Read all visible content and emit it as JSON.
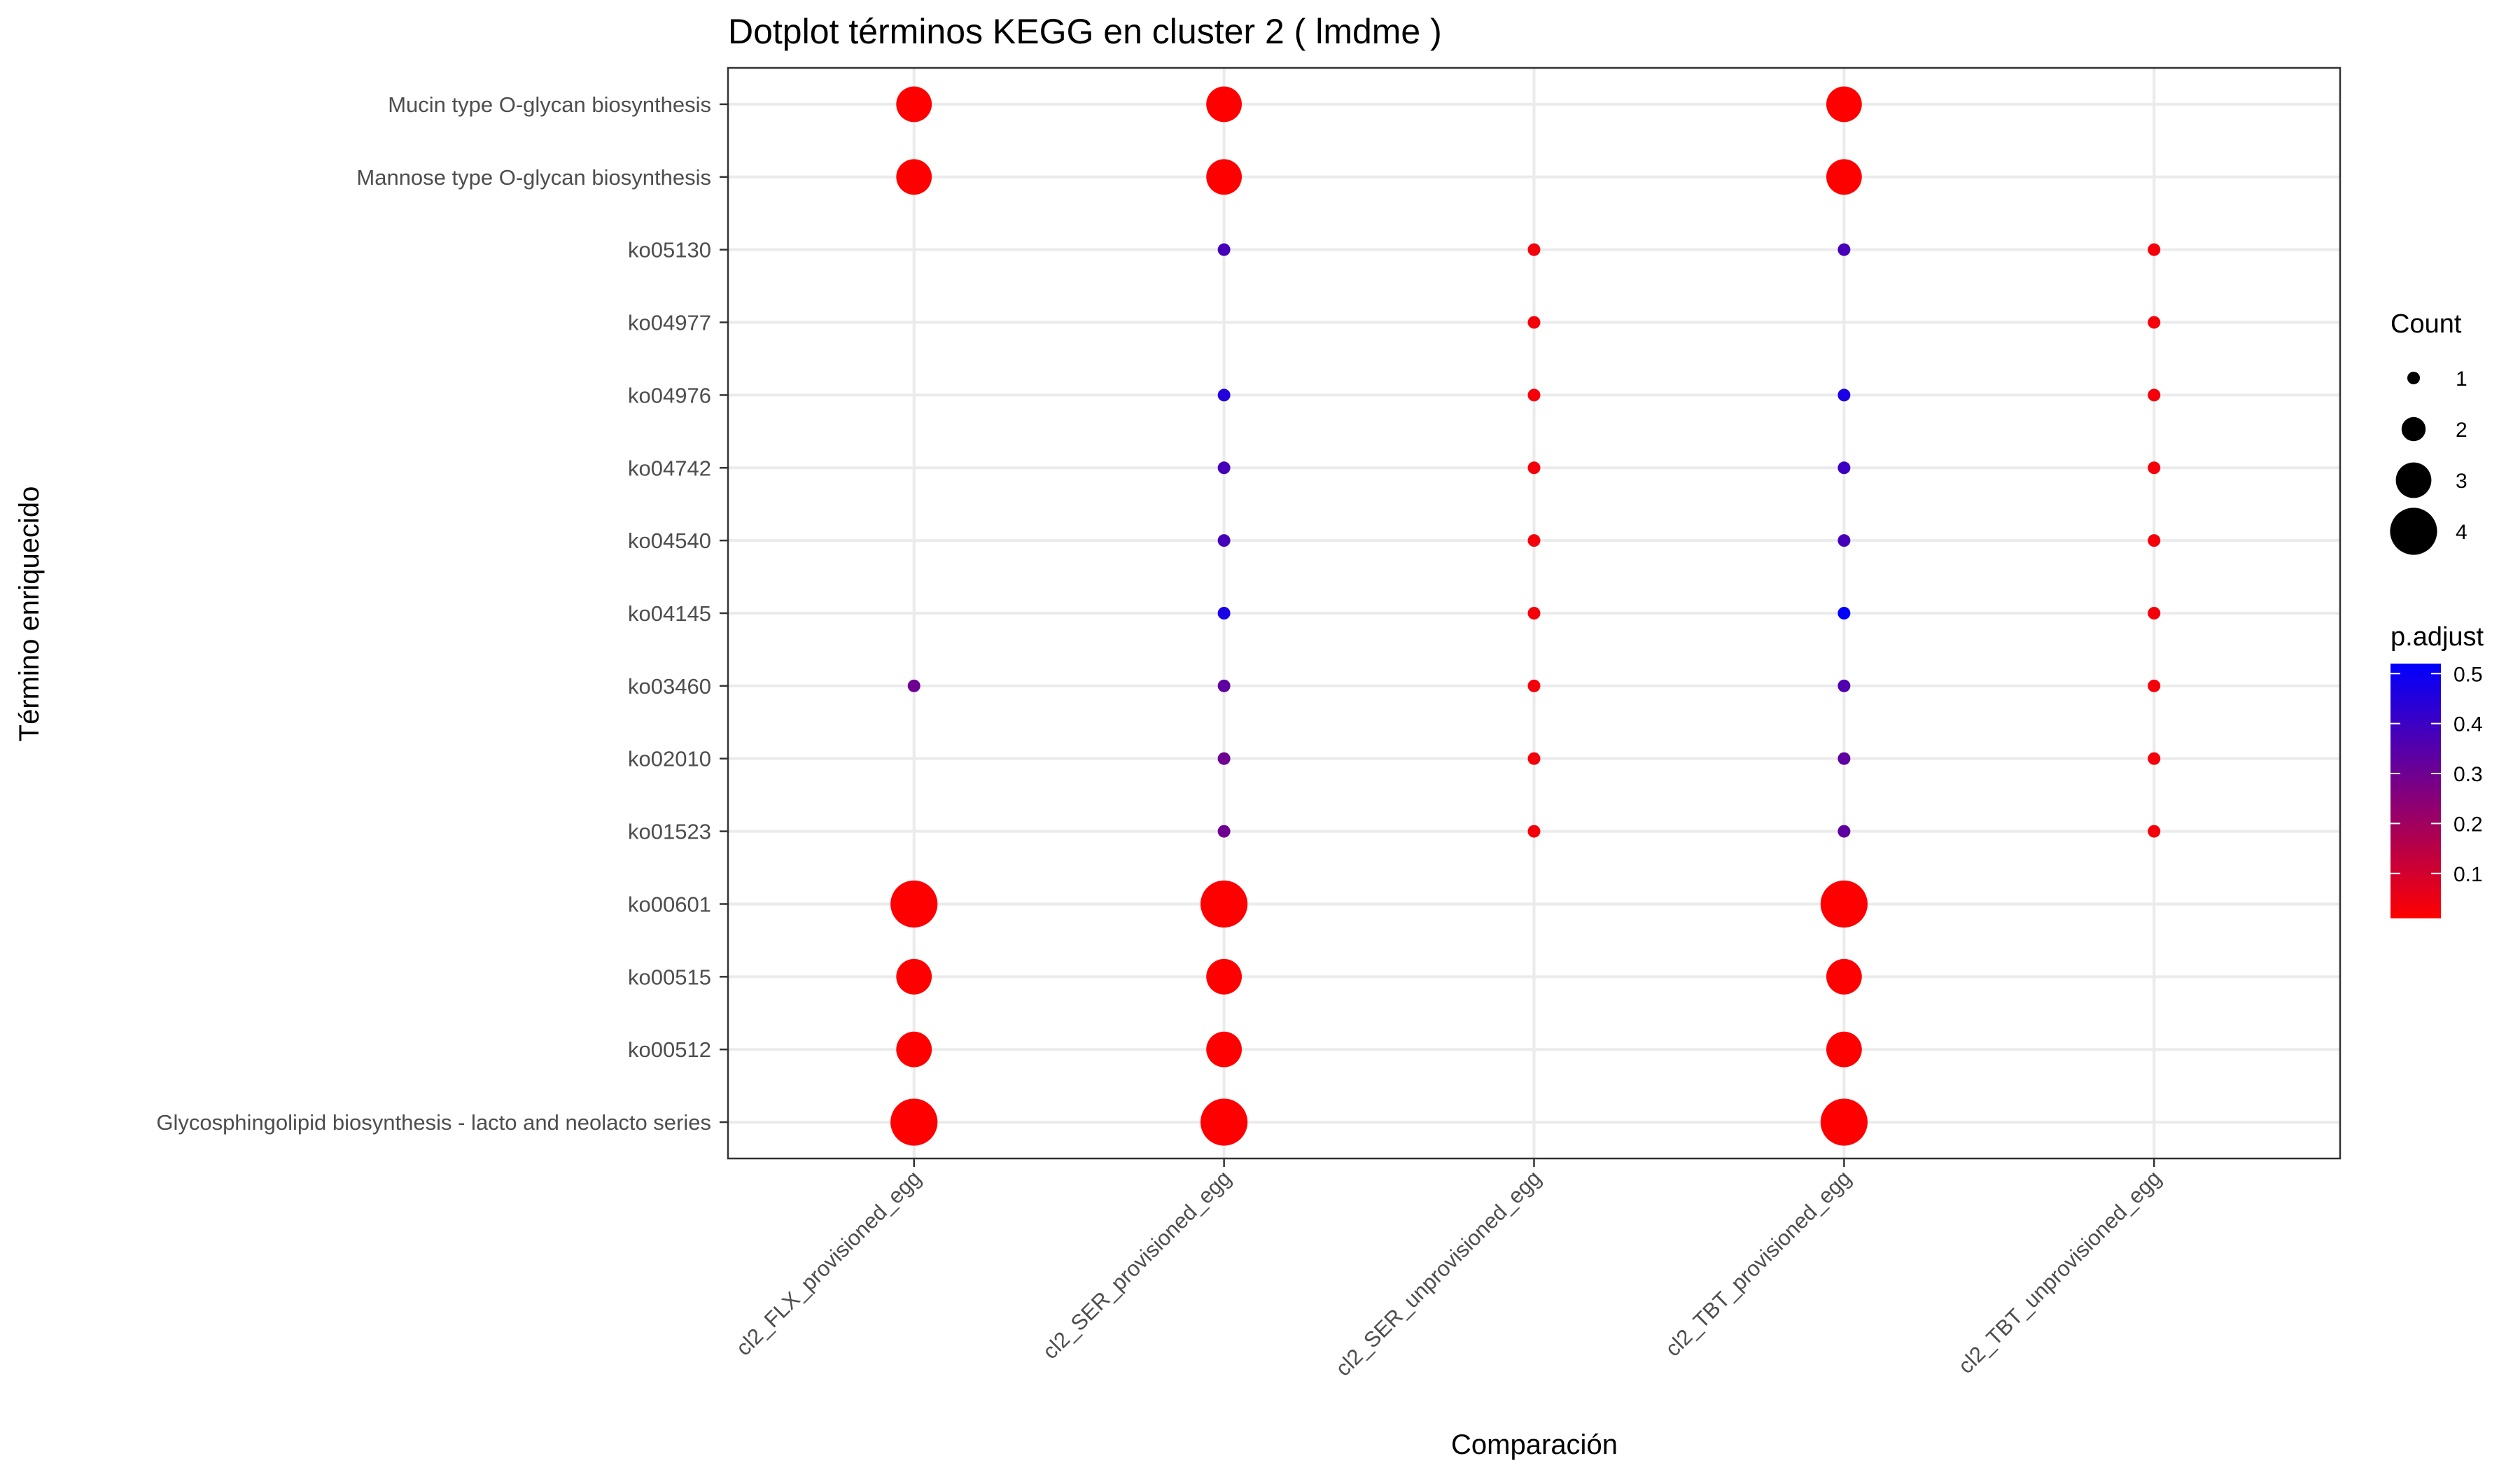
{
  "chart_data": {
    "type": "scatter",
    "title": "Dotplot términos  KEGG  en cluster 2  ( lmdme )",
    "xlabel": "Comparación",
    "ylabel": "Término enriquecido",
    "x_categories": [
      "cl2_FLX_provisioned_egg",
      "cl2_SER_provisioned_egg",
      "cl2_SER_unprovisioned_egg",
      "cl2_TBT_provisioned_egg",
      "cl2_TBT_unprovisioned_egg"
    ],
    "y_categories": [
      "Mucin type O-glycan biosynthesis",
      "Mannose type O-glycan biosynthesis",
      "ko05130",
      "ko04977",
      "ko04976",
      "ko04742",
      "ko04540",
      "ko04145",
      "ko03460",
      "ko02010",
      "ko01523",
      "ko00601",
      "ko00515",
      "ko00512",
      "Glycosphingolipid biosynthesis - lacto and neolacto series"
    ],
    "points": [
      {
        "x": "cl2_FLX_provisioned_egg",
        "y": "Mucin type O-glycan biosynthesis",
        "count": 3,
        "p_adjust": 0.01
      },
      {
        "x": "cl2_FLX_provisioned_egg",
        "y": "Mannose type O-glycan biosynthesis",
        "count": 3,
        "p_adjust": 0.01
      },
      {
        "x": "cl2_FLX_provisioned_egg",
        "y": "ko03460",
        "count": 1,
        "p_adjust": 0.3
      },
      {
        "x": "cl2_FLX_provisioned_egg",
        "y": "ko00601",
        "count": 4,
        "p_adjust": 0.01
      },
      {
        "x": "cl2_FLX_provisioned_egg",
        "y": "ko00515",
        "count": 3,
        "p_adjust": 0.01
      },
      {
        "x": "cl2_FLX_provisioned_egg",
        "y": "ko00512",
        "count": 3,
        "p_adjust": 0.01
      },
      {
        "x": "cl2_FLX_provisioned_egg",
        "y": "Glycosphingolipid biosynthesis - lacto and neolacto series",
        "count": 4,
        "p_adjust": 0.01
      },
      {
        "x": "cl2_SER_provisioned_egg",
        "y": "Mucin type O-glycan biosynthesis",
        "count": 3,
        "p_adjust": 0.01
      },
      {
        "x": "cl2_SER_provisioned_egg",
        "y": "Mannose type O-glycan biosynthesis",
        "count": 3,
        "p_adjust": 0.01
      },
      {
        "x": "cl2_SER_provisioned_egg",
        "y": "ko05130",
        "count": 1,
        "p_adjust": 0.38
      },
      {
        "x": "cl2_SER_provisioned_egg",
        "y": "ko04976",
        "count": 1,
        "p_adjust": 0.45
      },
      {
        "x": "cl2_SER_provisioned_egg",
        "y": "ko04742",
        "count": 1,
        "p_adjust": 0.38
      },
      {
        "x": "cl2_SER_provisioned_egg",
        "y": "ko04540",
        "count": 1,
        "p_adjust": 0.38
      },
      {
        "x": "cl2_SER_provisioned_egg",
        "y": "ko04145",
        "count": 1,
        "p_adjust": 0.47
      },
      {
        "x": "cl2_SER_provisioned_egg",
        "y": "ko03460",
        "count": 1,
        "p_adjust": 0.33
      },
      {
        "x": "cl2_SER_provisioned_egg",
        "y": "ko02010",
        "count": 1,
        "p_adjust": 0.3
      },
      {
        "x": "cl2_SER_provisioned_egg",
        "y": "ko01523",
        "count": 1,
        "p_adjust": 0.3
      },
      {
        "x": "cl2_SER_provisioned_egg",
        "y": "ko00601",
        "count": 4,
        "p_adjust": 0.01
      },
      {
        "x": "cl2_SER_provisioned_egg",
        "y": "ko00515",
        "count": 3,
        "p_adjust": 0.01
      },
      {
        "x": "cl2_SER_provisioned_egg",
        "y": "ko00512",
        "count": 3,
        "p_adjust": 0.01
      },
      {
        "x": "cl2_SER_provisioned_egg",
        "y": "Glycosphingolipid biosynthesis - lacto and neolacto series",
        "count": 4,
        "p_adjust": 0.01
      },
      {
        "x": "cl2_SER_unprovisioned_egg",
        "y": "ko05130",
        "count": 1,
        "p_adjust": 0.03
      },
      {
        "x": "cl2_SER_unprovisioned_egg",
        "y": "ko04977",
        "count": 1,
        "p_adjust": 0.03
      },
      {
        "x": "cl2_SER_unprovisioned_egg",
        "y": "ko04976",
        "count": 1,
        "p_adjust": 0.03
      },
      {
        "x": "cl2_SER_unprovisioned_egg",
        "y": "ko04742",
        "count": 1,
        "p_adjust": 0.03
      },
      {
        "x": "cl2_SER_unprovisioned_egg",
        "y": "ko04540",
        "count": 1,
        "p_adjust": 0.03
      },
      {
        "x": "cl2_SER_unprovisioned_egg",
        "y": "ko04145",
        "count": 1,
        "p_adjust": 0.03
      },
      {
        "x": "cl2_SER_unprovisioned_egg",
        "y": "ko03460",
        "count": 1,
        "p_adjust": 0.03
      },
      {
        "x": "cl2_SER_unprovisioned_egg",
        "y": "ko02010",
        "count": 1,
        "p_adjust": 0.03
      },
      {
        "x": "cl2_SER_unprovisioned_egg",
        "y": "ko01523",
        "count": 1,
        "p_adjust": 0.03
      },
      {
        "x": "cl2_TBT_provisioned_egg",
        "y": "Mucin type O-glycan biosynthesis",
        "count": 3,
        "p_adjust": 0.01
      },
      {
        "x": "cl2_TBT_provisioned_egg",
        "y": "Mannose type O-glycan biosynthesis",
        "count": 3,
        "p_adjust": 0.01
      },
      {
        "x": "cl2_TBT_provisioned_egg",
        "y": "ko05130",
        "count": 1,
        "p_adjust": 0.38
      },
      {
        "x": "cl2_TBT_provisioned_egg",
        "y": "ko04976",
        "count": 1,
        "p_adjust": 0.47
      },
      {
        "x": "cl2_TBT_provisioned_egg",
        "y": "ko04742",
        "count": 1,
        "p_adjust": 0.4
      },
      {
        "x": "cl2_TBT_provisioned_egg",
        "y": "ko04540",
        "count": 1,
        "p_adjust": 0.38
      },
      {
        "x": "cl2_TBT_provisioned_egg",
        "y": "ko04145",
        "count": 1,
        "p_adjust": 0.52
      },
      {
        "x": "cl2_TBT_provisioned_egg",
        "y": "ko03460",
        "count": 1,
        "p_adjust": 0.36
      },
      {
        "x": "cl2_TBT_provisioned_egg",
        "y": "ko02010",
        "count": 1,
        "p_adjust": 0.33
      },
      {
        "x": "cl2_TBT_provisioned_egg",
        "y": "ko01523",
        "count": 1,
        "p_adjust": 0.33
      },
      {
        "x": "cl2_TBT_provisioned_egg",
        "y": "ko00601",
        "count": 4,
        "p_adjust": 0.01
      },
      {
        "x": "cl2_TBT_provisioned_egg",
        "y": "ko00515",
        "count": 3,
        "p_adjust": 0.01
      },
      {
        "x": "cl2_TBT_provisioned_egg",
        "y": "ko00512",
        "count": 3,
        "p_adjust": 0.01
      },
      {
        "x": "cl2_TBT_provisioned_egg",
        "y": "Glycosphingolipid biosynthesis - lacto and neolacto series",
        "count": 4,
        "p_adjust": 0.01
      },
      {
        "x": "cl2_TBT_unprovisioned_egg",
        "y": "ko05130",
        "count": 1,
        "p_adjust": 0.03
      },
      {
        "x": "cl2_TBT_unprovisioned_egg",
        "y": "ko04977",
        "count": 1,
        "p_adjust": 0.03
      },
      {
        "x": "cl2_TBT_unprovisioned_egg",
        "y": "ko04976",
        "count": 1,
        "p_adjust": 0.03
      },
      {
        "x": "cl2_TBT_unprovisioned_egg",
        "y": "ko04742",
        "count": 1,
        "p_adjust": 0.03
      },
      {
        "x": "cl2_TBT_unprovisioned_egg",
        "y": "ko04540",
        "count": 1,
        "p_adjust": 0.03
      },
      {
        "x": "cl2_TBT_unprovisioned_egg",
        "y": "ko04145",
        "count": 1,
        "p_adjust": 0.03
      },
      {
        "x": "cl2_TBT_unprovisioned_egg",
        "y": "ko03460",
        "count": 1,
        "p_adjust": 0.03
      },
      {
        "x": "cl2_TBT_unprovisioned_egg",
        "y": "ko02010",
        "count": 1,
        "p_adjust": 0.03
      },
      {
        "x": "cl2_TBT_unprovisioned_egg",
        "y": "ko01523",
        "count": 1,
        "p_adjust": 0.03
      }
    ],
    "legend_count": {
      "title": "Count",
      "values": [
        1,
        2,
        3,
        4
      ],
      "labels": [
        "1",
        "2",
        "3",
        "4"
      ]
    },
    "legend_color": {
      "title": "p.adjust",
      "ticks": [
        0.1,
        0.2,
        0.3,
        0.4,
        0.5
      ],
      "labels": [
        "0.1",
        "0.2",
        "0.3",
        "0.4",
        "0.5"
      ],
      "range": [
        0.01,
        0.52
      ],
      "low_color": "#ff0000",
      "high_color": "#0000ff"
    },
    "legend_placement": "right",
    "grid": true
  }
}
